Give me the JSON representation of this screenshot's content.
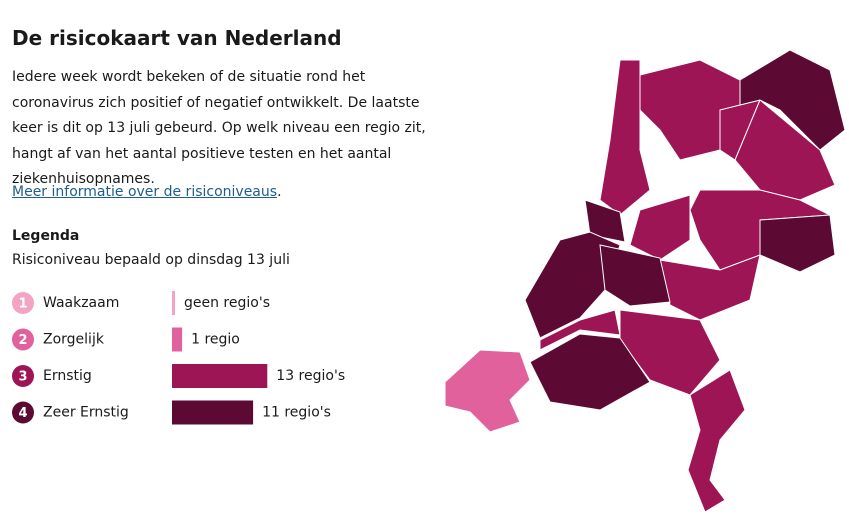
{
  "header": {
    "title": "De risicokaart van Nederland"
  },
  "intro": "Iedere week wordt bekeken of de situatie rond het coronavirus zich positief of negatief ontwikkelt. De laatste keer is dit op 13 juli gebeurd. Op welk niveau een regio zit, hangt af van het aantal positieve testen en het aantal ziekenhuisopnames.",
  "link": {
    "text": "Meer informatie over de risiconiveaus",
    "suffix": "."
  },
  "legend": {
    "title": "Legenda",
    "subtitle": "Risiconiveau bepaald op dinsdag 13 juli",
    "levels": [
      {
        "level": "1",
        "name": "Waakzaam",
        "color": "#f3a3c4",
        "count": 0,
        "count_label": "geen regio's"
      },
      {
        "level": "2",
        "name": "Zorgelijk",
        "color": "#e0619b",
        "count": 1,
        "count_label": "1 regio"
      },
      {
        "level": "3",
        "name": "Ernstig",
        "color": "#9e1556",
        "count": 13,
        "count_label": "13 regio's"
      },
      {
        "level": "4",
        "name": "Zeer Ernstig",
        "color": "#5c0a33",
        "count": 11,
        "count_label": "11 regio's"
      }
    ]
  }
}
